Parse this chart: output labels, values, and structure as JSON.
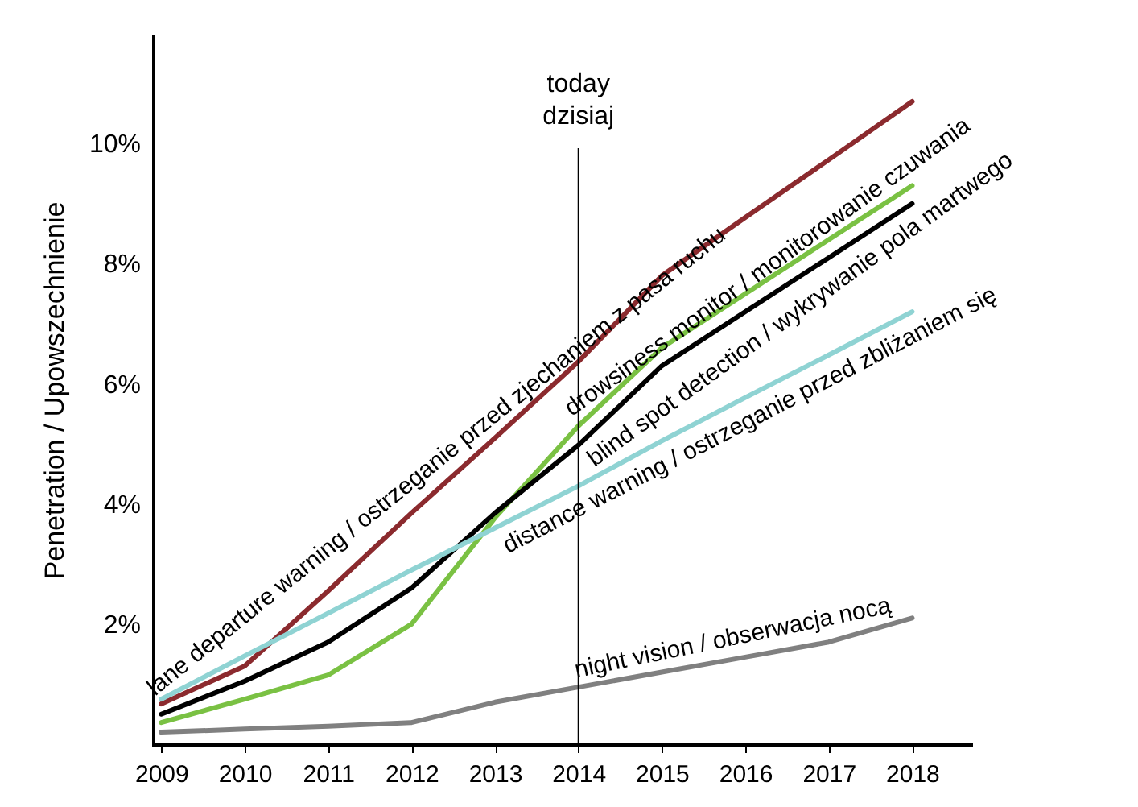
{
  "chart_data": {
    "type": "line",
    "ylabel": "Penetration / Upowszechnienie",
    "x": [
      2009,
      2010,
      2011,
      2012,
      2013,
      2014,
      2015,
      2016,
      2017,
      2018
    ],
    "xlim": [
      2008.9,
      2018.7
    ],
    "xticks": [
      2009,
      2010,
      2011,
      2012,
      2013,
      2014,
      2015,
      2016,
      2017,
      2018
    ],
    "ylim": [
      0,
      11.8
    ],
    "yticks": [
      {
        "value": 2,
        "label": "2%"
      },
      {
        "value": 4,
        "label": "4%"
      },
      {
        "value": 6,
        "label": "6%"
      },
      {
        "value": 8,
        "label": "8%"
      },
      {
        "value": 10,
        "label": "10%"
      }
    ],
    "grid": false,
    "legend": false,
    "series": [
      {
        "name": "lane departure warning / ostrzeganie przed zjechaniem z pasa ruchu",
        "color": "#8b2a2e",
        "values": [
          0.67,
          1.3,
          2.55,
          3.85,
          5.1,
          6.37,
          7.8,
          8.77,
          9.73,
          10.7
        ]
      },
      {
        "name": "drowsiness monitor / monitorowanie czuwania",
        "color": "#7ac143",
        "values": [
          0.36,
          0.75,
          1.15,
          2.0,
          3.77,
          5.3,
          6.6,
          7.5,
          8.4,
          9.3
        ]
      },
      {
        "name": "blind spot detection / wykrywanie pola martwego",
        "color": "#000000",
        "values": [
          0.5,
          1.05,
          1.7,
          2.6,
          3.85,
          4.98,
          6.3,
          7.2,
          8.1,
          9.0
        ]
      },
      {
        "name": "distance warning / ostrzeganie przed zbliżaniem się",
        "color": "#8fd3d3",
        "values": [
          0.75,
          1.47,
          2.18,
          2.9,
          3.6,
          4.3,
          5.05,
          5.77,
          6.48,
          7.2
        ]
      },
      {
        "name": "night vision / obserwacja nocą",
        "color": "#808080",
        "values": [
          0.2,
          0.25,
          0.3,
          0.36,
          0.7,
          0.95,
          1.2,
          1.45,
          1.7,
          2.1
        ]
      }
    ],
    "ref_lines": [
      {
        "axis": "x",
        "value": 2014,
        "label": "today\ndzisiaj",
        "color": "#000000"
      }
    ]
  }
}
